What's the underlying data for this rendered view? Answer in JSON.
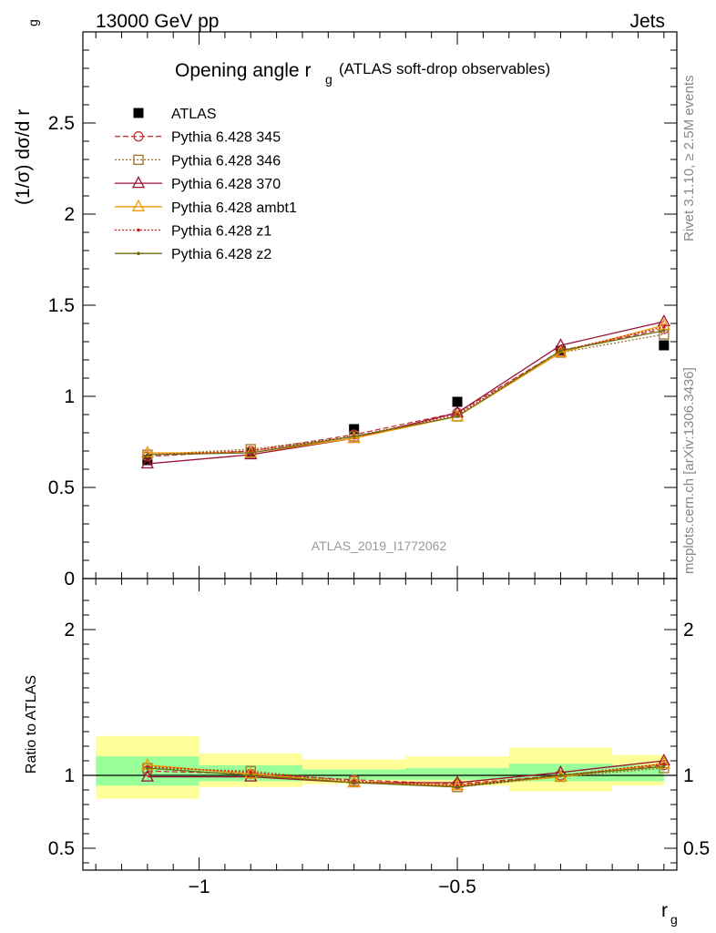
{
  "header": {
    "energy": "13000 GeV pp",
    "process": "Jets",
    "title_main": "Opening angle r",
    "title_sub": "g",
    "title_paren": "(ATLAS soft-drop observables)",
    "analysis_id": "ATLAS_2019_I1772062",
    "side_rivet": "Rivet 3.1.10, ≥ 2.5M events",
    "side_mcplots": "mcplots.cern.ch [arXiv:1306.3436]"
  },
  "axes": {
    "ylabel_main": "(1/σ) dσ/d r",
    "ylabel_main_sub": "g",
    "ylabel_ratio": "Ratio to ATLAS",
    "xlabel": "r",
    "xlabel_sub": "g"
  },
  "chart_data": [
    {
      "type": "line",
      "panel": "main",
      "x": [
        -1.1,
        -0.9,
        -0.7,
        -0.5,
        -0.3,
        -0.1
      ],
      "xlim": [
        -1.225,
        -0.075
      ],
      "ylim": [
        0,
        3.0
      ],
      "yticks": [
        {
          "v": 0,
          "label": "0"
        },
        {
          "v": 0.5,
          "label": "0.5"
        },
        {
          "v": 1,
          "label": "1"
        },
        {
          "v": 1.5,
          "label": "1.5"
        },
        {
          "v": 2,
          "label": "2"
        },
        {
          "v": 2.5,
          "label": "2.5"
        }
      ],
      "legend_position": "top-left",
      "series": [
        {
          "name": "ATLAS",
          "marker": "square-filled",
          "style": "data",
          "color": "#000000",
          "y": [
            0.65,
            0.69,
            0.82,
            0.97,
            1.25,
            1.28
          ]
        },
        {
          "name": "Pythia 6.428 345",
          "marker": "circle-open",
          "style": "dashed",
          "color": "#c0393b",
          "y": [
            0.67,
            0.7,
            0.79,
            0.91,
            1.25,
            1.37
          ]
        },
        {
          "name": "Pythia 6.428 346",
          "marker": "square-open",
          "style": "dotted",
          "color": "#a0702a",
          "y": [
            0.68,
            0.71,
            0.78,
            0.89,
            1.24,
            1.34
          ]
        },
        {
          "name": "Pythia 6.428 370",
          "marker": "triangle-open",
          "style": "solid",
          "color": "#9a1030",
          "y": [
            0.63,
            0.68,
            0.77,
            0.91,
            1.28,
            1.41
          ]
        },
        {
          "name": "Pythia 6.428 ambt1",
          "marker": "triangle-open",
          "style": "solid",
          "color": "#ee9a00",
          "y": [
            0.69,
            0.69,
            0.77,
            0.89,
            1.24,
            1.39
          ]
        },
        {
          "name": "Pythia 6.428 z1",
          "marker": "dot",
          "style": "dotted",
          "color": "#cc1e1e",
          "y": [
            0.68,
            0.7,
            0.78,
            0.9,
            1.25,
            1.38
          ]
        },
        {
          "name": "Pythia 6.428 z2",
          "marker": "dot",
          "style": "solid",
          "color": "#6b6b10",
          "y": [
            0.68,
            0.69,
            0.78,
            0.89,
            1.25,
            1.36
          ]
        }
      ]
    },
    {
      "type": "line",
      "panel": "ratio",
      "x": [
        -1.1,
        -0.9,
        -0.7,
        -0.5,
        -0.3,
        -0.1
      ],
      "xlim": [
        -1.225,
        -0.075
      ],
      "ylim": [
        0.35,
        2.35
      ],
      "xticks": [
        {
          "v": -1,
          "label": "−1"
        },
        {
          "v": -0.5,
          "label": "−0.5"
        }
      ],
      "yticks": [
        {
          "v": 0.5,
          "label": "0.5"
        },
        {
          "v": 1,
          "label": "1"
        },
        {
          "v": 2,
          "label": "2"
        }
      ],
      "bins": [
        {
          "lo": -1.2,
          "hi": -1.0,
          "green": [
            0.93,
            1.13
          ],
          "yellow": [
            0.84,
            1.27
          ]
        },
        {
          "lo": -1.0,
          "hi": -0.8,
          "green": [
            0.96,
            1.07
          ],
          "yellow": [
            0.92,
            1.15
          ]
        },
        {
          "lo": -0.8,
          "hi": -0.6,
          "green": [
            0.97,
            1.04
          ],
          "yellow": [
            0.94,
            1.11
          ]
        },
        {
          "lo": -0.6,
          "hi": -0.4,
          "green": [
            0.97,
            1.05
          ],
          "yellow": [
            0.93,
            1.13
          ]
        },
        {
          "lo": -0.4,
          "hi": -0.2,
          "green": [
            0.96,
            1.08
          ],
          "yellow": [
            0.89,
            1.19
          ]
        },
        {
          "lo": -0.2,
          "hi": -0.1,
          "green": [
            0.96,
            1.07
          ],
          "yellow": [
            0.93,
            1.14
          ]
        }
      ],
      "series": [
        {
          "name": "Pythia 6.428 345",
          "y": [
            1.03,
            1.01,
            0.97,
            0.94,
            1.0,
            1.07
          ]
        },
        {
          "name": "Pythia 6.428 346",
          "y": [
            1.05,
            1.03,
            0.96,
            0.92,
            0.99,
            1.05
          ]
        },
        {
          "name": "Pythia 6.428 370",
          "y": [
            0.99,
            0.99,
            0.95,
            0.95,
            1.02,
            1.1
          ]
        },
        {
          "name": "Pythia 6.428 ambt1",
          "y": [
            1.07,
            1.01,
            0.95,
            0.93,
            0.99,
            1.08
          ]
        },
        {
          "name": "Pythia 6.428 z1",
          "y": [
            1.06,
            1.02,
            0.96,
            0.93,
            1.0,
            1.08
          ]
        },
        {
          "name": "Pythia 6.428 z2",
          "y": [
            1.05,
            1.0,
            0.95,
            0.92,
            1.0,
            1.06
          ]
        }
      ]
    }
  ],
  "colors": {
    "band_green": "#99ff99",
    "band_yellow": "#ffff99"
  }
}
